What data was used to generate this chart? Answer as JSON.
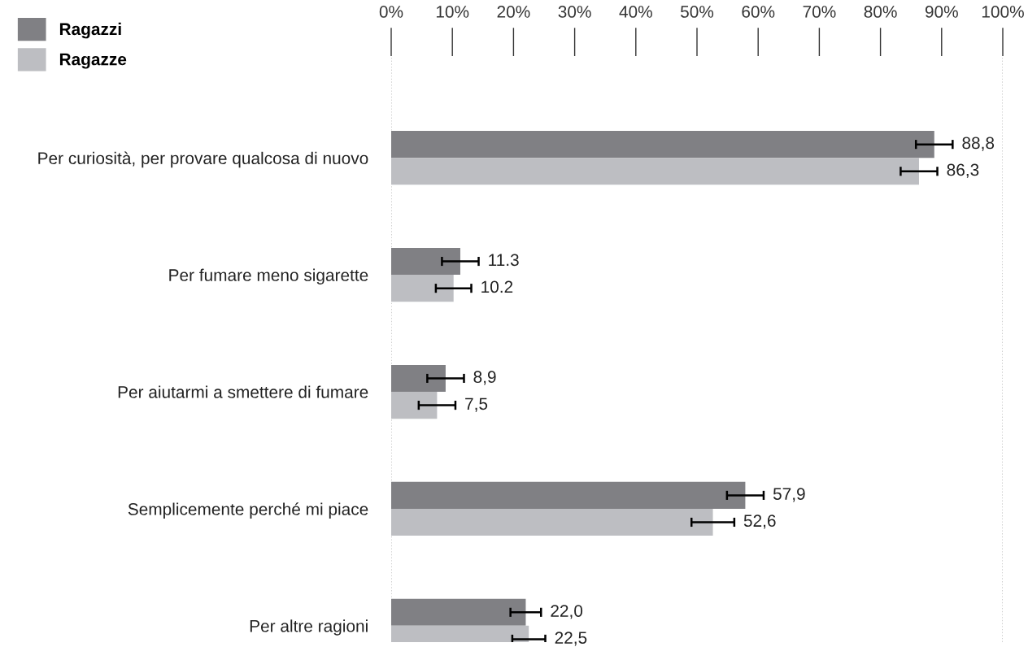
{
  "chart_data": {
    "type": "bar",
    "orientation": "horizontal",
    "categories": [
      "Per curiosità, per provare qualcosa di nuovo",
      "Per fumare meno sigarette",
      "Per aiutarmi a smettere di fumare",
      "Semplicemente perché mi piace",
      "Per altre ragioni"
    ],
    "series": [
      {
        "name": "Ragazzi",
        "color": "#808084",
        "values": [
          88.8,
          11.3,
          8.9,
          57.9,
          22.0
        ],
        "errors": [
          3.0,
          3.0,
          3.0,
          3.0,
          2.5
        ],
        "value_labels": [
          "88,8",
          "11.3",
          "8,9",
          "57,9",
          "22,0"
        ]
      },
      {
        "name": "Ragazze",
        "color": "#bdbec2",
        "values": [
          86.3,
          10.2,
          7.5,
          52.6,
          22.5
        ],
        "errors": [
          3.0,
          2.9,
          3.0,
          3.5,
          2.7
        ],
        "value_labels": [
          "86,3",
          "10.2",
          "7,5",
          "52,6",
          "22,5"
        ]
      }
    ],
    "xlim": [
      0,
      100
    ],
    "xticks": [
      {
        "value": 0,
        "label": "0%"
      },
      {
        "value": 10,
        "label": "10%"
      },
      {
        "value": 20,
        "label": "20%"
      },
      {
        "value": 30,
        "label": "30%"
      },
      {
        "value": 40,
        "label": "40%"
      },
      {
        "value": 50,
        "label": "50%"
      },
      {
        "value": 60,
        "label": "60%"
      },
      {
        "value": 70,
        "label": "70%"
      },
      {
        "value": 80,
        "label": "80%"
      },
      {
        "value": 90,
        "label": "90%"
      },
      {
        "value": 100,
        "label": "100%"
      }
    ],
    "ref_lines": [
      {
        "axis": "x",
        "value": 0,
        "color": "#bbbbbb",
        "line_style": "dotted"
      },
      {
        "axis": "x",
        "value": 100,
        "color": "#bbbbbb",
        "line_style": "dotted"
      }
    ],
    "legend": "top left",
    "grid": false
  }
}
